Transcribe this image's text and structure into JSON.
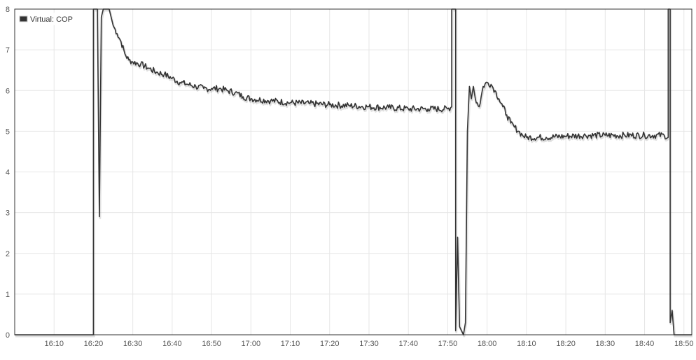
{
  "chart_data": {
    "type": "line",
    "x_unit": "time of day (HH:MM)",
    "xlim": [
      "16:00",
      "18:52"
    ],
    "ylim": [
      0,
      8
    ],
    "x_ticks": [
      "16:10",
      "16:20",
      "16:30",
      "16:40",
      "16:50",
      "17:00",
      "17:10",
      "17:20",
      "17:30",
      "17:40",
      "17:50",
      "18:00",
      "18:10",
      "18:20",
      "18:30",
      "18:40",
      "18:50"
    ],
    "y_ticks": [
      0,
      1,
      2,
      3,
      4,
      5,
      6,
      7,
      8
    ],
    "grid": true,
    "legend_position": "top-left",
    "series": [
      {
        "name": "Virtual: COP",
        "color": "#333333",
        "points": [
          [
            "16:00",
            0
          ],
          [
            "16:20",
            0
          ],
          [
            "16:20",
            8
          ],
          [
            "16:21",
            8
          ],
          [
            "16:21.5",
            2.9
          ],
          [
            "16:22",
            7.8
          ],
          [
            "16:22.5",
            8
          ],
          [
            "16:24",
            8
          ],
          [
            "16:25",
            7.6
          ],
          [
            "16:26",
            7.4
          ],
          [
            "16:27",
            7.2
          ],
          [
            "16:28",
            6.9
          ],
          [
            "16:29",
            6.75
          ],
          [
            "16:30",
            6.7
          ],
          [
            "16:32",
            6.65
          ],
          [
            "16:34",
            6.55
          ],
          [
            "16:36",
            6.45
          ],
          [
            "16:38",
            6.4
          ],
          [
            "16:40",
            6.3
          ],
          [
            "16:42",
            6.2
          ],
          [
            "16:44",
            6.15
          ],
          [
            "16:46",
            6.1
          ],
          [
            "16:48",
            6.05
          ],
          [
            "16:50",
            6.05
          ],
          [
            "16:52",
            6.05
          ],
          [
            "16:54",
            6.0
          ],
          [
            "16:56",
            5.95
          ],
          [
            "16:58",
            5.85
          ],
          [
            "17:00",
            5.8
          ],
          [
            "17:05",
            5.75
          ],
          [
            "17:10",
            5.7
          ],
          [
            "17:15",
            5.68
          ],
          [
            "17:20",
            5.65
          ],
          [
            "17:25",
            5.63
          ],
          [
            "17:30",
            5.6
          ],
          [
            "17:35",
            5.58
          ],
          [
            "17:40",
            5.55
          ],
          [
            "17:45",
            5.55
          ],
          [
            "17:50",
            5.55
          ],
          [
            "17:51",
            5.6
          ],
          [
            "17:51",
            8
          ],
          [
            "17:52",
            8
          ],
          [
            "17:52",
            0.1
          ],
          [
            "17:52.5",
            2.4
          ],
          [
            "17:53",
            0.2
          ],
          [
            "17:54",
            0
          ],
          [
            "17:54.5",
            0.3
          ],
          [
            "17:55",
            5.0
          ],
          [
            "17:55.5",
            6.1
          ],
          [
            "17:56",
            5.8
          ],
          [
            "17:56.5",
            6.1
          ],
          [
            "17:57",
            5.8
          ],
          [
            "17:58",
            5.6
          ],
          [
            "17:59",
            6.1
          ],
          [
            "18:00",
            6.2
          ],
          [
            "18:01",
            6.15
          ],
          [
            "18:02",
            6.0
          ],
          [
            "18:03",
            5.8
          ],
          [
            "18:04",
            5.6
          ],
          [
            "18:05",
            5.4
          ],
          [
            "18:06",
            5.2
          ],
          [
            "18:07",
            5.1
          ],
          [
            "18:08",
            5.0
          ],
          [
            "18:09",
            4.9
          ],
          [
            "18:10",
            4.85
          ],
          [
            "18:15",
            4.85
          ],
          [
            "18:20",
            4.88
          ],
          [
            "18:25",
            4.9
          ],
          [
            "18:30",
            4.9
          ],
          [
            "18:35",
            4.9
          ],
          [
            "18:40",
            4.9
          ],
          [
            "18:45",
            4.9
          ],
          [
            "18:46",
            4.85
          ],
          [
            "18:46",
            8
          ],
          [
            "18:46.5",
            8
          ],
          [
            "18:46.5",
            0.3
          ],
          [
            "18:47",
            0.6
          ],
          [
            "18:47.5",
            0
          ],
          [
            "18:52",
            0
          ]
        ]
      }
    ]
  }
}
